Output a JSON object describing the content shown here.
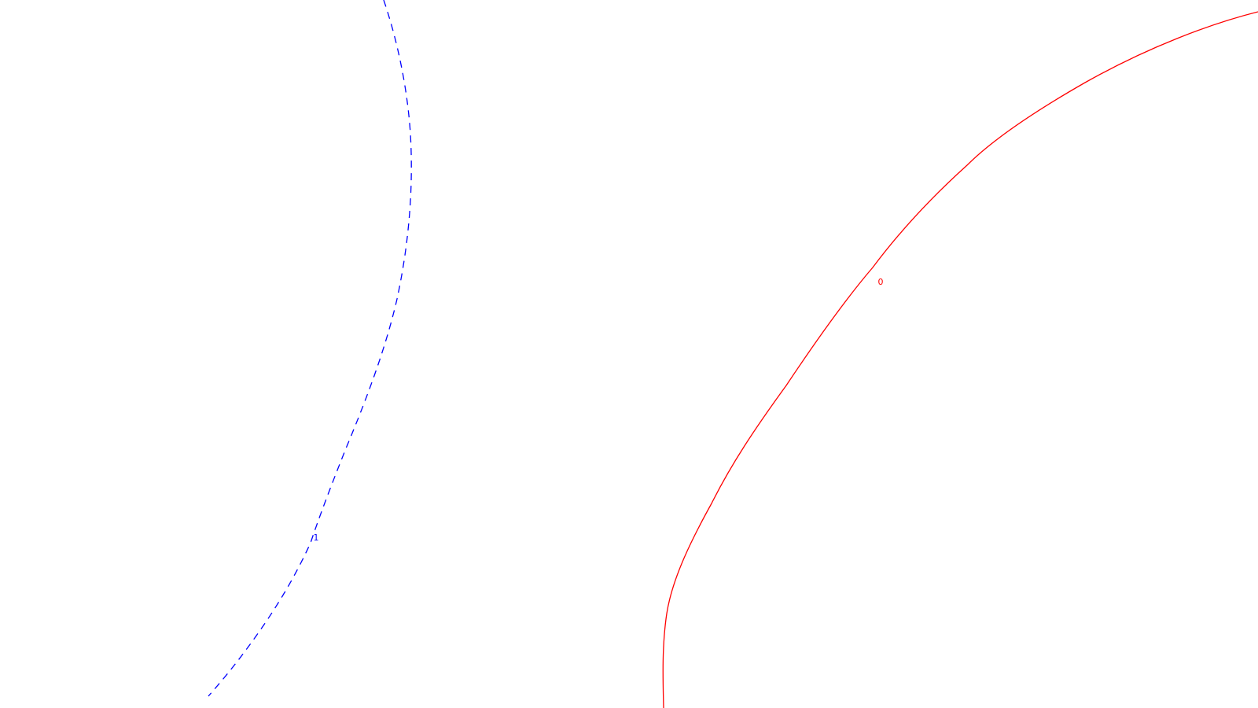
{
  "contours": [
    {
      "level": "0",
      "color": "#ff0000",
      "style": "solid"
    },
    {
      "level": "1",
      "color": "#0000ff",
      "style": "dashed"
    }
  ]
}
